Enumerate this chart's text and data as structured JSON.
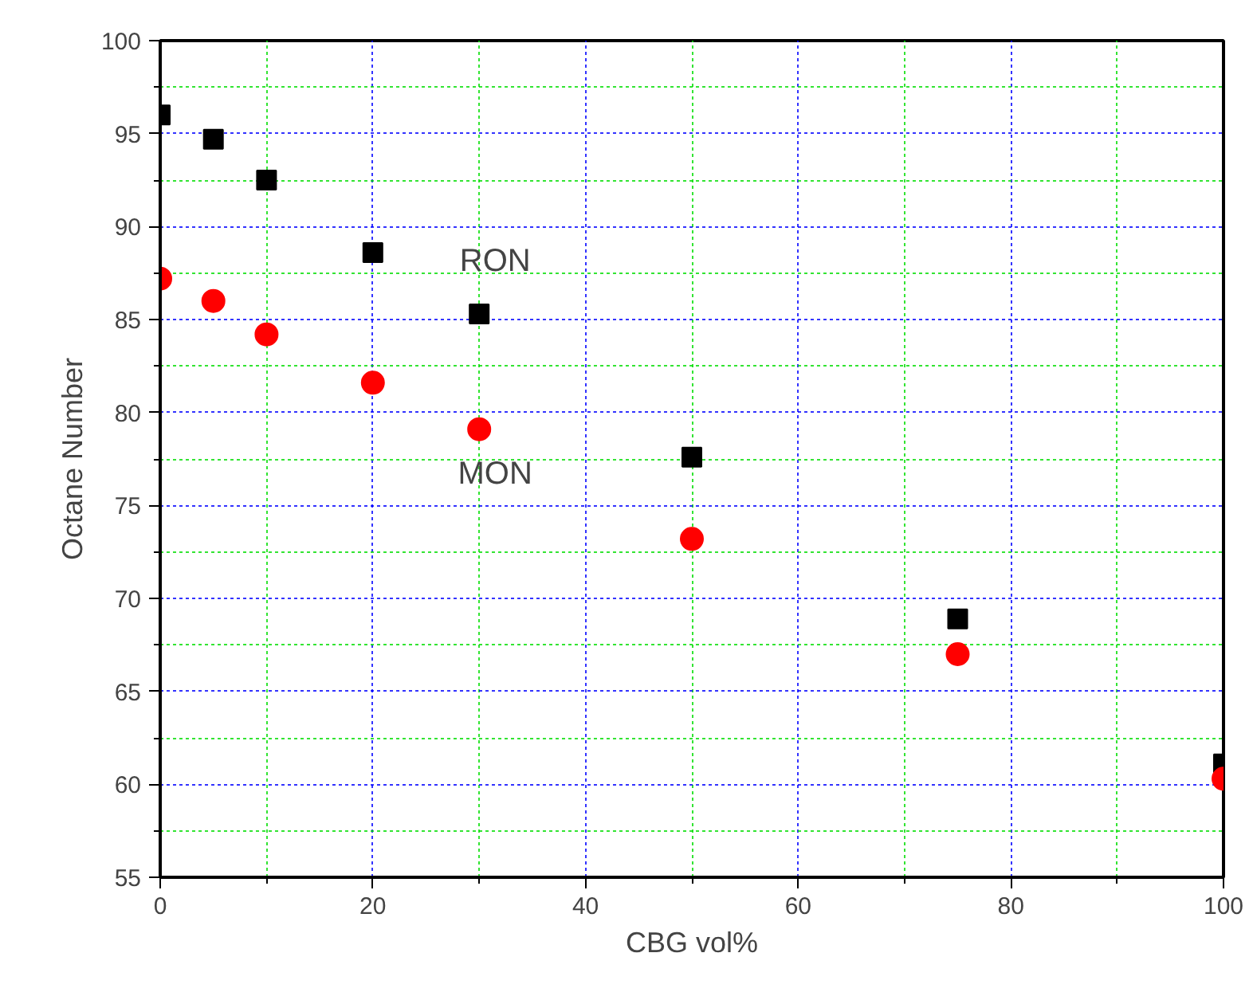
{
  "chart_data": {
    "type": "scatter",
    "xlabel": "CBG vol%",
    "ylabel": "Octane Number",
    "x": [
      0,
      5,
      10,
      20,
      30,
      50,
      75,
      100
    ],
    "series": [
      {
        "name": "RON",
        "color": "#000000",
        "marker": "square",
        "values": [
          96.0,
          94.7,
          92.5,
          88.6,
          85.3,
          77.6,
          68.9,
          61.1
        ]
      },
      {
        "name": "MON",
        "color": "#ff0000",
        "marker": "circle",
        "values": [
          87.2,
          86.0,
          84.2,
          81.6,
          79.1,
          73.2,
          67.0,
          60.3
        ]
      }
    ],
    "xlim": [
      0,
      100
    ],
    "xticks": [
      0,
      {
        "value": 10,
        "label": null
      },
      20,
      {
        "value": 30,
        "label": null
      },
      40,
      {
        "value": 50,
        "label": null
      },
      60,
      {
        "value": 70,
        "label": null
      },
      80,
      {
        "value": 90,
        "label": null
      },
      100
    ],
    "ylim": [
      55,
      100
    ],
    "yticks": [
      55,
      {
        "value": 57.5,
        "label": null
      },
      60,
      {
        "value": 62.5,
        "label": null
      },
      65,
      {
        "value": 67.5,
        "label": null
      },
      70,
      {
        "value": 72.5,
        "label": null
      },
      75,
      {
        "value": 77.5,
        "label": null
      },
      80,
      {
        "value": 82.5,
        "label": null
      },
      85,
      {
        "value": 87.5,
        "label": null
      },
      90,
      {
        "value": 92.5,
        "label": null
      },
      95,
      {
        "value": 97.5,
        "label": null
      },
      100
    ],
    "grid": true,
    "legend": false
  }
}
